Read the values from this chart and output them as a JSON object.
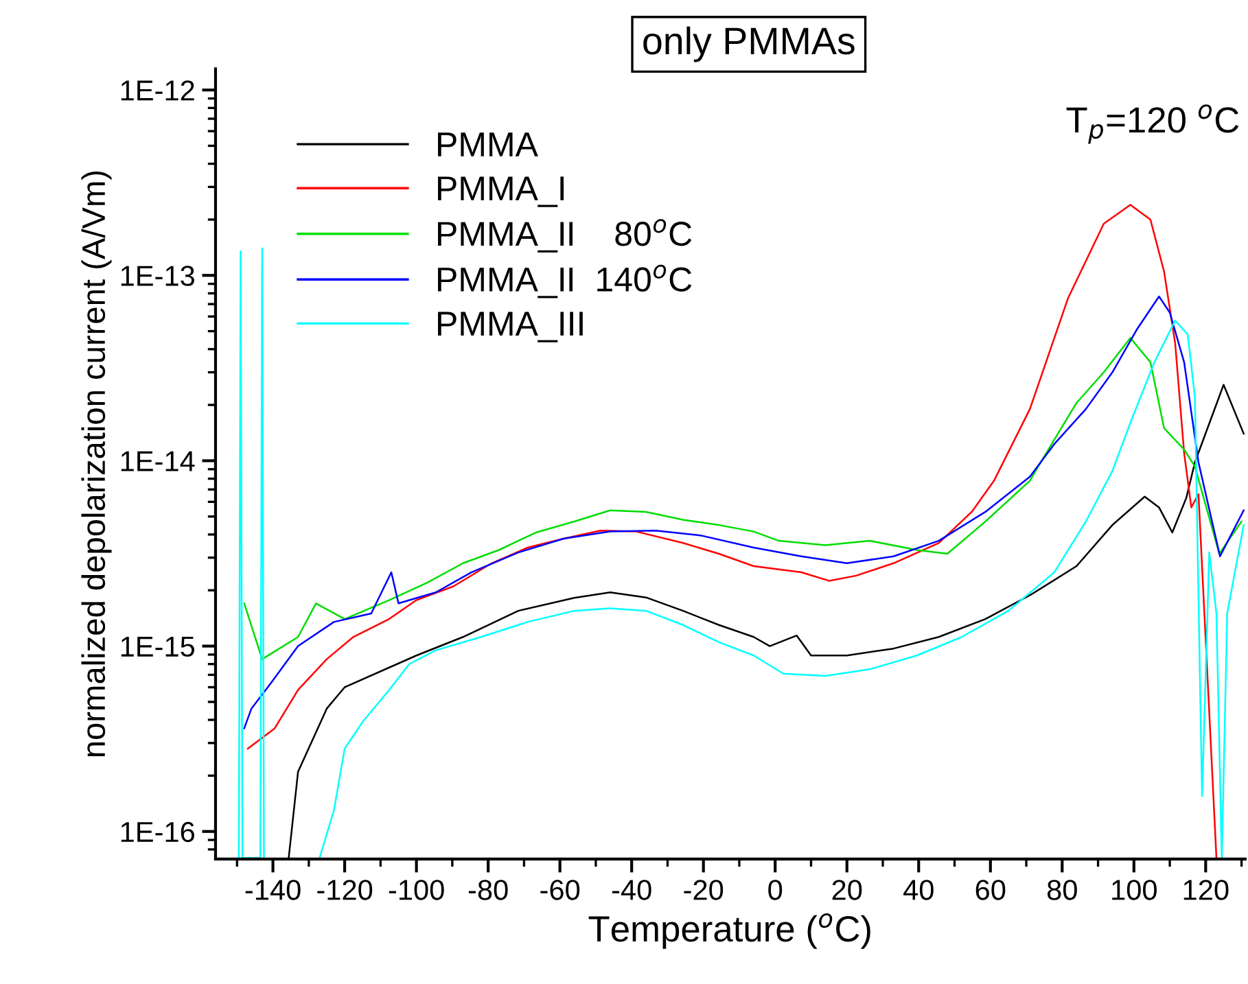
{
  "chart_data": {
    "type": "line",
    "title": "only PMMAs",
    "xlabel": "Temperature ($^{o}$C)",
    "ylabel": "normalized depolarization current (A/Vm)",
    "annotations": [
      "T$_{p}$=120 $^{o}$C"
    ],
    "log": "y",
    "legend": "top left",
    "grid": false,
    "xlim": [
      -156,
      131
    ],
    "ylim": [
      7.1e-17,
      1.3e-12
    ],
    "xticks": [
      {
        "value": -150,
        "label": null
      },
      -140,
      {
        "value": -130,
        "label": null
      },
      -120,
      {
        "value": -110,
        "label": null
      },
      -100,
      {
        "value": -90,
        "label": null
      },
      -80,
      {
        "value": -70,
        "label": null
      },
      -60,
      {
        "value": -50,
        "label": null
      },
      -40,
      {
        "value": -30,
        "label": null
      },
      -20,
      {
        "value": -10,
        "label": null
      },
      0,
      {
        "value": 10,
        "label": null
      },
      20,
      {
        "value": 30,
        "label": null
      },
      40,
      {
        "value": 50,
        "label": null
      },
      60,
      {
        "value": 70,
        "label": null
      },
      80,
      {
        "value": 90,
        "label": null
      },
      100,
      {
        "value": 110,
        "label": null
      },
      120,
      {
        "value": 130,
        "label": null
      }
    ],
    "yticks": [
      {
        "value": 1e-16,
        "label": "1E-16"
      },
      {
        "value": 1e-15,
        "label": "1E-15"
      },
      {
        "value": 1e-14,
        "label": "1E-14"
      },
      {
        "value": 1e-13,
        "label": "1E-13"
      },
      {
        "value": 1e-12,
        "label": "1E-12"
      }
    ],
    "series": [
      {
        "name": "PMMA",
        "color": "#000000",
        "x": [
          -135.6,
          -133,
          -125,
          -120,
          -100,
          -87,
          -71.6,
          -56,
          -46,
          -36,
          -25.7,
          -15.7,
          -6,
          -1.5,
          6,
          10,
          20,
          33,
          45.6,
          58.6,
          71,
          84,
          94,
          103,
          107,
          110.7,
          114.6,
          117,
          125,
          130.6
        ],
        "values": [
          7.2e-17,
          2.1e-16,
          4.6e-16,
          6e-16,
          8.9e-16,
          1.12e-15,
          1.55e-15,
          1.82e-15,
          1.95e-15,
          1.83e-15,
          1.55e-15,
          1.3e-15,
          1.12e-15,
          1e-15,
          1.14e-15,
          8.9e-16,
          8.9e-16,
          9.7e-16,
          1.12e-15,
          1.4e-15,
          1.88e-15,
          2.7e-15,
          4.5e-15,
          6.4e-15,
          5.6e-15,
          4.1e-15,
          6.3e-15,
          9.8e-15,
          2.57e-14,
          1.4e-14
        ]
      },
      {
        "name": "PMMA_I",
        "color": "#ff0000",
        "x": [
          -147,
          -139.5,
          -133,
          -125,
          -117.6,
          -107.6,
          -100,
          -89.7,
          -79,
          -69,
          -59,
          -48.7,
          -38.7,
          -25.7,
          -15.7,
          -6,
          7.3,
          15,
          22.6,
          33,
          45.6,
          54.8,
          61,
          71,
          81.6,
          91.6,
          99,
          104.6,
          108.4,
          111.5,
          114,
          116,
          118,
          123
        ],
        "values": [
          2.8e-16,
          3.6e-16,
          5.8e-16,
          8.5e-16,
          1.12e-15,
          1.4e-15,
          1.77e-15,
          2.1e-15,
          2.8e-15,
          3.4e-15,
          3.8e-15,
          4.2e-15,
          4.15e-15,
          3.6e-15,
          3.15e-15,
          2.7e-15,
          2.5e-15,
          2.25e-15,
          2.4e-15,
          2.8e-15,
          3.6e-15,
          5.3e-15,
          7.8e-15,
          1.9e-14,
          7.5e-14,
          1.9e-13,
          2.4e-13,
          2e-13,
          1.05e-13,
          4.3e-14,
          1.1e-14,
          5.6e-15,
          6.6e-15,
          7.2e-17
        ]
      },
      {
        "name": "PMMA_II    80$^{o}$C",
        "color": "#00dd00",
        "x": [
          -148,
          -143,
          -133,
          -128,
          -120,
          -107.6,
          -97,
          -87,
          -77,
          -66.7,
          -56,
          -46,
          -36,
          -25.7,
          -15.7,
          -6,
          1,
          14,
          26.4,
          39.5,
          48,
          58.6,
          71,
          74,
          84,
          91.6,
          99,
          104.6,
          108.4,
          114,
          117,
          123.8,
          130
        ],
        "values": [
          1.7e-15,
          8.5e-16,
          1.12e-15,
          1.7e-15,
          1.4e-15,
          1.77e-15,
          2.2e-15,
          2.8e-15,
          3.3e-15,
          4.1e-15,
          4.7e-15,
          5.4e-15,
          5.3e-15,
          4.8e-15,
          4.5e-15,
          4.15e-15,
          3.7e-15,
          3.5e-15,
          3.7e-15,
          3.3e-15,
          3.15e-15,
          4.7e-15,
          7.8e-15,
          9.8e-15,
          2.05e-14,
          3e-14,
          4.6e-14,
          3.4e-14,
          1.5e-14,
          1.15e-14,
          9.3e-15,
          3.15e-15,
          4.7e-15
        ]
      },
      {
        "name": "PMMA_II  140$^{o}$C",
        "color": "#0000ff",
        "x": [
          -148,
          -146,
          -140.6,
          -133,
          -123,
          -112.6,
          -107,
          -105,
          -94.6,
          -84.7,
          -71.6,
          -59,
          -46,
          -33.3,
          -20.7,
          -6,
          7.3,
          20,
          33,
          45.6,
          58.6,
          71,
          77.8,
          86.6,
          94,
          100.8,
          107,
          110,
          114,
          118,
          124,
          130.6
        ],
        "values": [
          3.6e-16,
          4.6e-16,
          6.3e-16,
          1e-15,
          1.35e-15,
          1.5e-15,
          2.5e-15,
          1.7e-15,
          1.95e-15,
          2.5e-15,
          3.2e-15,
          3.8e-15,
          4.15e-15,
          4.2e-15,
          3.95e-15,
          3.4e-15,
          3.05e-15,
          2.8e-15,
          3.05e-15,
          3.7e-15,
          5.3e-15,
          8.2e-15,
          1.23e-14,
          1.9e-14,
          3e-14,
          5.1e-14,
          7.7e-14,
          6.3e-14,
          3.4e-14,
          9.8e-15,
          3.05e-15,
          5.4e-15
        ]
      },
      {
        "name": "PMMA_III",
        "color": "#00ffff",
        "x": [
          -149.5,
          -149,
          -148.5,
          -143.5,
          -143,
          -142.5,
          -135,
          -127,
          -123,
          -120,
          -115,
          -107.6,
          -102,
          -94.6,
          -82,
          -69,
          -56,
          -46,
          -36,
          -25.7,
          -15.7,
          -6,
          2.3,
          14,
          26.4,
          39.5,
          52,
          65,
          77.8,
          86.6,
          94,
          99,
          105.7,
          111.5,
          115,
          117,
          119,
          121,
          123,
          124.5,
          126,
          130.6
        ],
        "values": [
          7.2e-17,
          1.35e-13,
          7.2e-17,
          7.2e-17,
          1.4e-13,
          7.2e-17,
          null,
          7.2e-17,
          1.3e-16,
          2.8e-16,
          3.9e-16,
          5.8e-16,
          8e-16,
          9.5e-16,
          1.12e-15,
          1.35e-15,
          1.55e-15,
          1.6e-15,
          1.55e-15,
          1.3e-15,
          1.05e-15,
          8.9e-16,
          7.1e-16,
          6.9e-16,
          7.5e-16,
          8.9e-16,
          1.12e-15,
          1.55e-15,
          2.5e-15,
          4.7e-15,
          8.8e-15,
          1.6e-14,
          3.4e-14,
          5.7e-14,
          4.8e-14,
          2.2e-14,
          1.55e-16,
          3.2e-15,
          1.5e-15,
          7.2e-17,
          1.5e-15,
          4.5e-15
        ]
      }
    ]
  }
}
